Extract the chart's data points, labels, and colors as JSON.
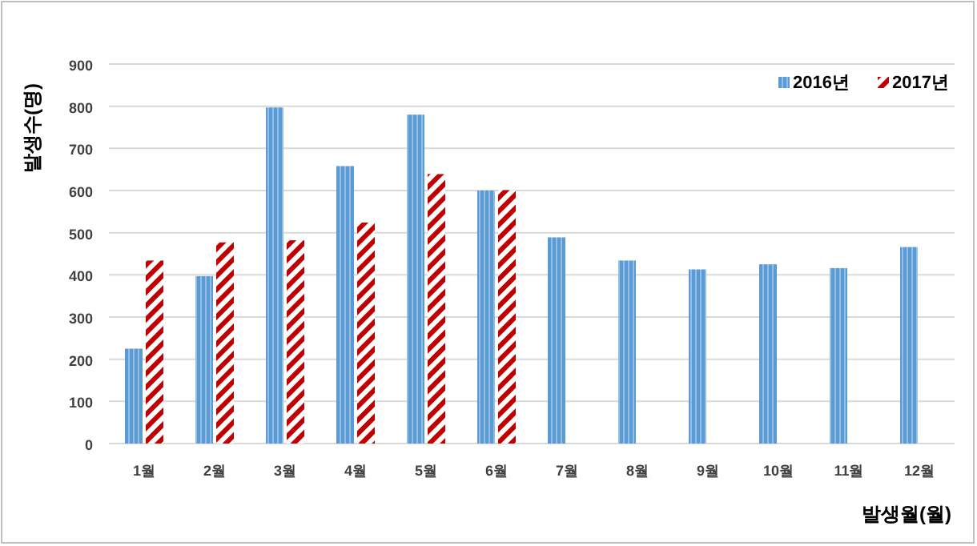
{
  "chart_data": {
    "type": "bar",
    "categories": [
      "1월",
      "2월",
      "3월",
      "4월",
      "5월",
      "6월",
      "7월",
      "8월",
      "9월",
      "10월",
      "11월",
      "12월"
    ],
    "series": [
      {
        "name": "2016년",
        "color": "#5b9bd5",
        "values": [
          225,
          397,
          797,
          658,
          780,
          600,
          489,
          434,
          413,
          425,
          416,
          466
        ]
      },
      {
        "name": "2017년",
        "color": "#c00000",
        "values": [
          434,
          477,
          482,
          524,
          639,
          601,
          null,
          null,
          null,
          null,
          null,
          null
        ]
      }
    ],
    "xlabel": "발생월(월)",
    "ylabel": "발생수(명)",
    "ylim": [
      0,
      900
    ],
    "yticks": [
      0,
      100,
      200,
      300,
      400,
      500,
      600,
      700,
      800,
      900
    ],
    "grid": "y",
    "legend": "top right"
  }
}
